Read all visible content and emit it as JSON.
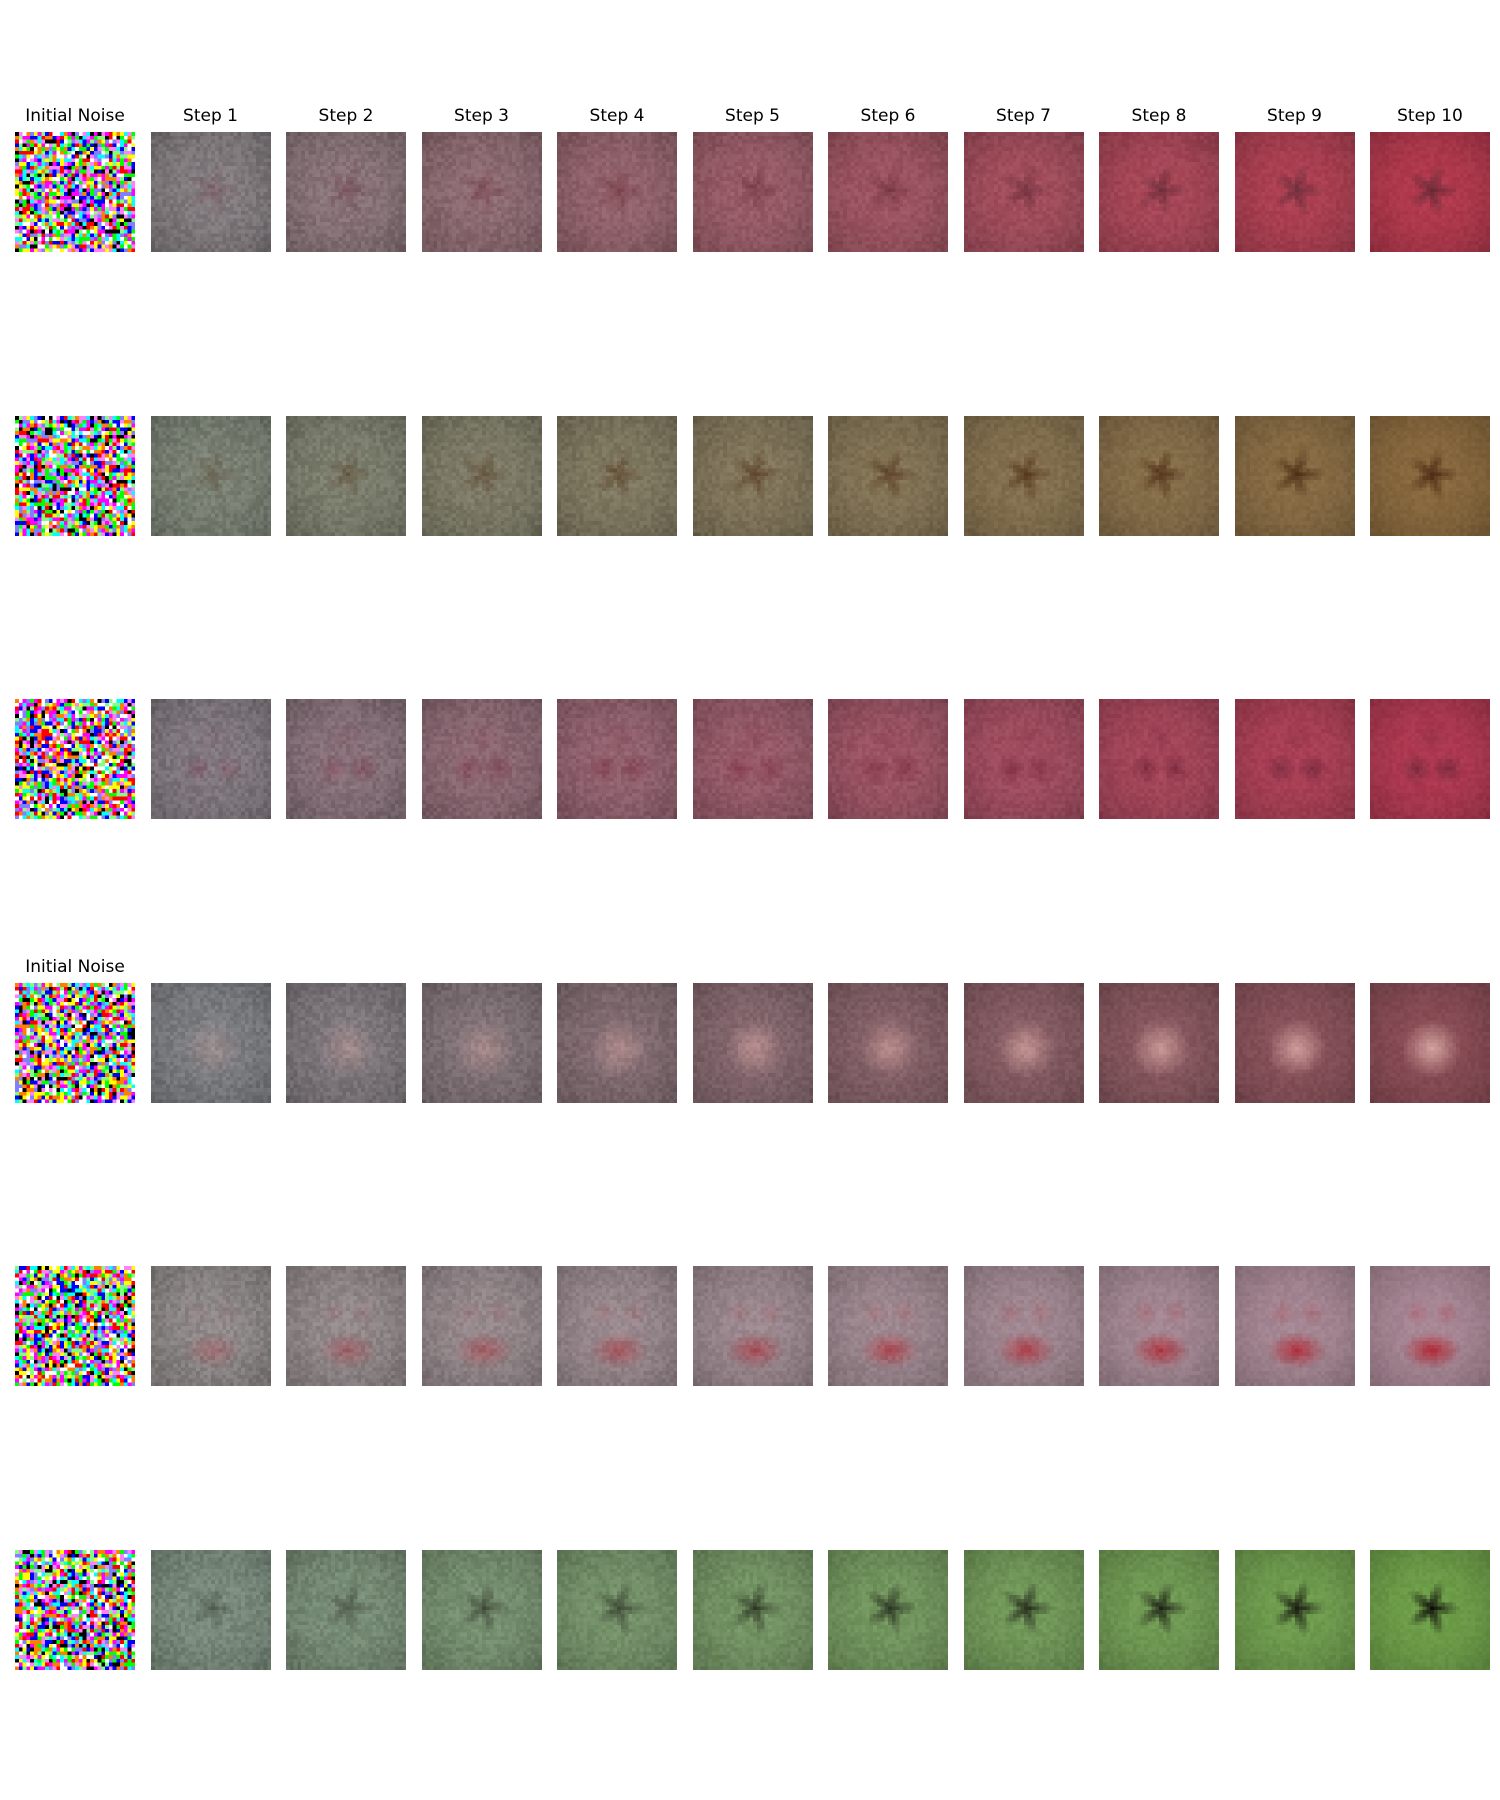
{
  "figure": {
    "column_titles": [
      "Initial Noise",
      "Step 1",
      "Step 2",
      "Step 3",
      "Step 4",
      "Step 5",
      "Step 6",
      "Step 7",
      "Step 8",
      "Step 9",
      "Step 10"
    ],
    "rows": [
      {
        "first_title": "Initial Noise",
        "show_titles": true,
        "start_color": "#7d8788",
        "end_color": "#b33a4e",
        "blob_color": "#6a2d3a",
        "blob_type": "star"
      },
      {
        "first_title": "",
        "show_titles": false,
        "start_color": "#7a877e",
        "end_color": "#8a6a3f",
        "blob_color": "#4a2a12",
        "blob_type": "star"
      },
      {
        "first_title": "",
        "show_titles": false,
        "start_color": "#7c8488",
        "end_color": "#b13a52",
        "blob_color": "#7c2c40",
        "blob_type": "double"
      },
      {
        "first_title": "Initial Noise",
        "show_titles": false,
        "start_color": "#7d878a",
        "end_color": "#8a4d56",
        "blob_color": "#d4a3a0",
        "blob_type": "light"
      },
      {
        "first_title": "",
        "show_titles": false,
        "start_color": "#8c8a88",
        "end_color": "#a98896",
        "blob_color": "#b42c38",
        "blob_type": "mouth"
      },
      {
        "first_title": "",
        "show_titles": false,
        "start_color": "#7d8a86",
        "end_color": "#6fa04a",
        "blob_color": "#0f0d0a",
        "blob_type": "star"
      }
    ]
  }
}
